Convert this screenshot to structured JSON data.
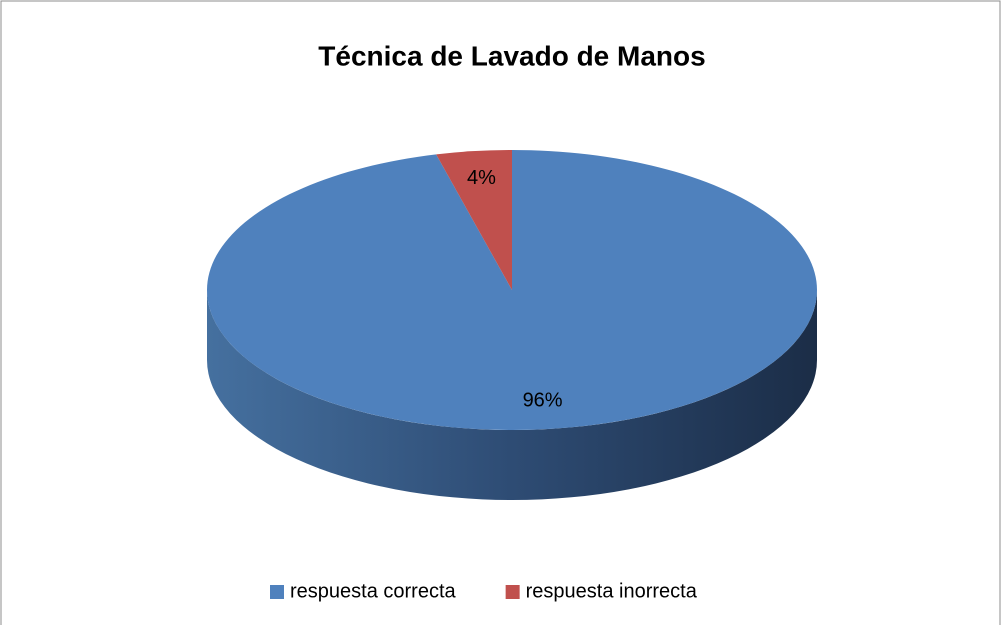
{
  "chart_data": {
    "type": "pie",
    "title": "Técnica de Lavado de Manos",
    "categories": [
      "respuesta correcta",
      "respuesta inorrecta"
    ],
    "values": [
      96,
      4
    ],
    "value_labels": [
      "96%",
      "4%"
    ],
    "colors": [
      "#4f81bd",
      "#c0504d"
    ],
    "legend": "bottom"
  }
}
